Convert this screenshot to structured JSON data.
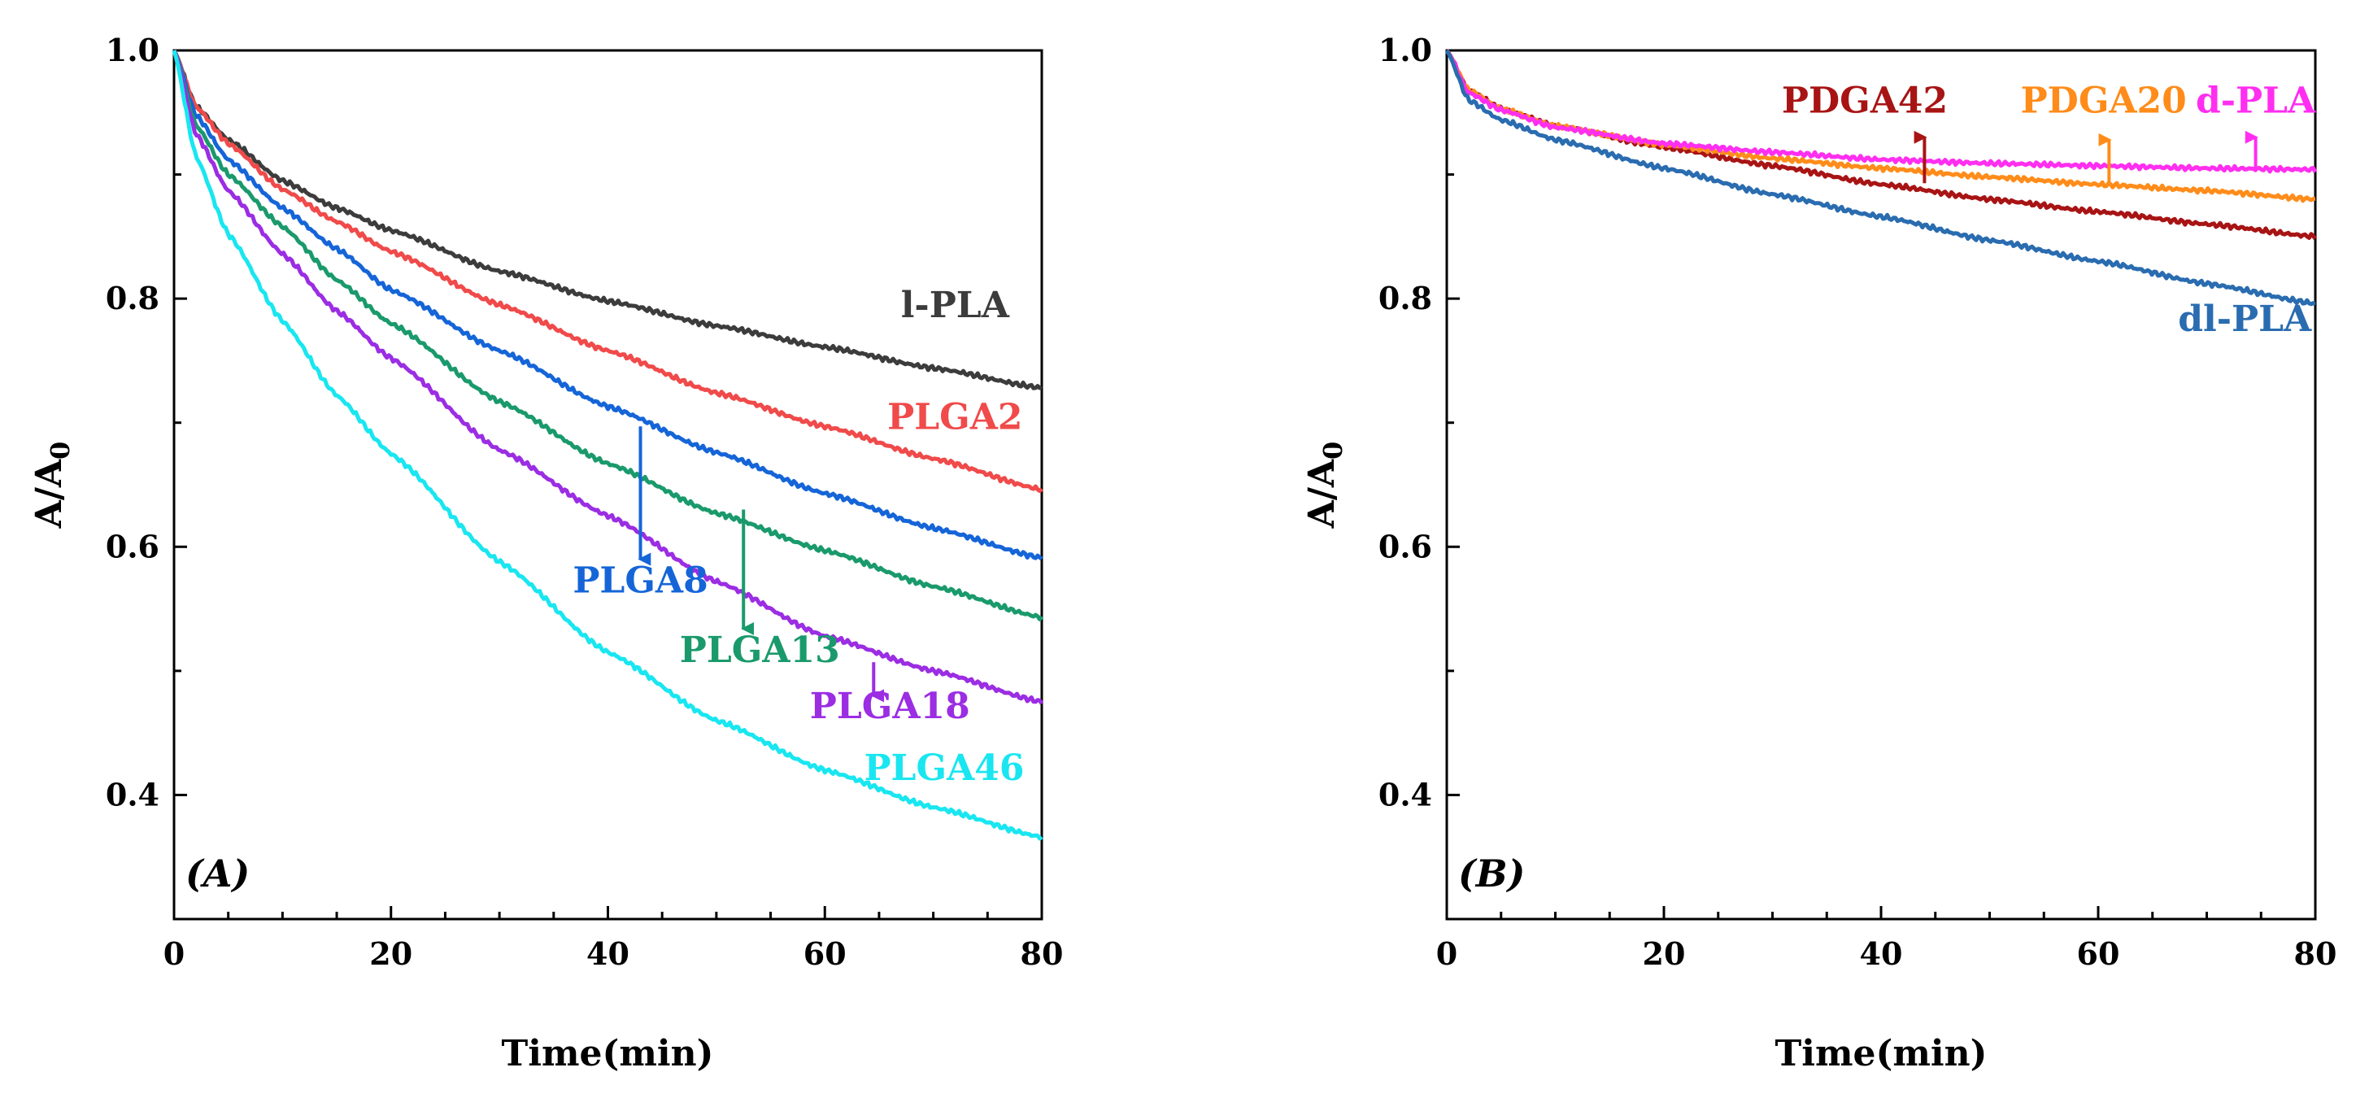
{
  "chart_data": [
    {
      "type": "line",
      "panel_label": "(A)",
      "xlabel": "Time(min)",
      "ylabel": "A/A",
      "ylabel_sub": "0",
      "xlim": [
        0,
        80
      ],
      "ylim": [
        0.3,
        1.0
      ],
      "xticks": [
        0,
        20,
        40,
        60,
        80
      ],
      "yticks": [
        0.4,
        0.6,
        0.8,
        1.0
      ],
      "xtick_labels": [
        "0",
        "20",
        "40",
        "60",
        "80"
      ],
      "ytick_labels": [
        "0.4",
        "0.6",
        "0.8",
        "1.0"
      ],
      "grid": false,
      "series": [
        {
          "name": "l-PLA",
          "color": "#3c3c3c",
          "x": [
            0,
            2,
            5,
            10,
            15,
            20,
            30,
            40,
            50,
            60,
            70,
            80
          ],
          "values": [
            1.0,
            0.955,
            0.928,
            0.895,
            0.873,
            0.855,
            0.822,
            0.798,
            0.778,
            0.761,
            0.744,
            0.728
          ]
        },
        {
          "name": "PLGA2",
          "color": "#f04a4a",
          "x": [
            0,
            2,
            5,
            10,
            15,
            20,
            30,
            40,
            50,
            60,
            70,
            80
          ],
          "values": [
            1.0,
            0.955,
            0.925,
            0.888,
            0.862,
            0.838,
            0.795,
            0.758,
            0.724,
            0.697,
            0.671,
            0.646
          ]
        },
        {
          "name": "PLGA8",
          "color": "#1565d8",
          "x": [
            0,
            2,
            5,
            10,
            15,
            20,
            30,
            40,
            50,
            60,
            70,
            80
          ],
          "values": [
            1.0,
            0.948,
            0.912,
            0.873,
            0.84,
            0.807,
            0.758,
            0.713,
            0.676,
            0.643,
            0.615,
            0.591
          ]
        },
        {
          "name": "PLGA13",
          "color": "#1a9a6c",
          "x": [
            0,
            2,
            5,
            10,
            15,
            20,
            30,
            40,
            50,
            60,
            70,
            80
          ],
          "values": [
            1.0,
            0.94,
            0.9,
            0.858,
            0.815,
            0.78,
            0.717,
            0.667,
            0.627,
            0.597,
            0.568,
            0.543
          ]
        },
        {
          "name": "PLGA18",
          "color": "#9b2de3",
          "x": [
            0,
            2,
            5,
            10,
            15,
            20,
            30,
            40,
            50,
            60,
            70,
            80
          ],
          "values": [
            1.0,
            0.933,
            0.887,
            0.836,
            0.79,
            0.752,
            0.678,
            0.625,
            0.572,
            0.528,
            0.5,
            0.475
          ]
        },
        {
          "name": "PLGA46",
          "color": "#19e6f0",
          "x": [
            0,
            2,
            5,
            10,
            15,
            20,
            30,
            40,
            50,
            60,
            70,
            80
          ],
          "values": [
            1.0,
            0.915,
            0.852,
            0.782,
            0.722,
            0.675,
            0.588,
            0.515,
            0.46,
            0.42,
            0.39,
            0.366
          ]
        }
      ],
      "annotations": [
        {
          "text": "l-PLA",
          "series": "l-PLA",
          "at": [
            72,
            0.785
          ]
        },
        {
          "text": "PLGA2",
          "series": "PLGA2",
          "at": [
            72,
            0.695
          ]
        },
        {
          "text": "PLGA8",
          "series": "PLGA8",
          "at": [
            43,
            0.563
          ],
          "arrow_from": [
            43,
            0.697
          ],
          "arrow_to": [
            43,
            0.59
          ]
        },
        {
          "text": "PLGA13",
          "series": "PLGA13",
          "at": [
            54,
            0.507
          ],
          "arrow_from": [
            52.5,
            0.63
          ],
          "arrow_to": [
            52.5,
            0.534
          ]
        },
        {
          "text": "PLGA18",
          "series": "PLGA18",
          "at": [
            66,
            0.462
          ],
          "arrow_from": [
            64.5,
            0.507
          ],
          "arrow_to": [
            64.5,
            0.48
          ]
        },
        {
          "text": "PLGA46",
          "series": "PLGA46",
          "at": [
            71,
            0.412
          ]
        }
      ]
    },
    {
      "type": "line",
      "panel_label": "(B)",
      "xlabel": "Time(min)",
      "ylabel": "A/A",
      "ylabel_sub": "0",
      "xlim": [
        0,
        80
      ],
      "ylim": [
        0.3,
        1.0
      ],
      "xticks": [
        0,
        20,
        40,
        60,
        80
      ],
      "yticks": [
        0.4,
        0.6,
        0.8,
        1.0
      ],
      "xtick_labels": [
        "0",
        "20",
        "40",
        "60",
        "80"
      ],
      "ytick_labels": [
        "0.4",
        "0.6",
        "0.8",
        "1.0"
      ],
      "grid": false,
      "series": [
        {
          "name": "PDGA42",
          "color": "#a81414",
          "x": [
            0,
            2,
            5,
            10,
            20,
            30,
            40,
            50,
            60,
            70,
            80
          ],
          "values": [
            1.0,
            0.968,
            0.953,
            0.939,
            0.922,
            0.907,
            0.892,
            0.88,
            0.87,
            0.86,
            0.85
          ]
        },
        {
          "name": "PDGA20",
          "color": "#ff8c1a",
          "x": [
            0,
            2,
            5,
            10,
            20,
            30,
            40,
            50,
            60,
            70,
            80
          ],
          "values": [
            1.0,
            0.968,
            0.953,
            0.939,
            0.924,
            0.913,
            0.905,
            0.898,
            0.892,
            0.887,
            0.88
          ]
        },
        {
          "name": "d-PLA",
          "color": "#ff2ef0",
          "x": [
            0,
            2,
            5,
            10,
            20,
            30,
            40,
            50,
            60,
            70,
            80
          ],
          "values": [
            1.0,
            0.966,
            0.952,
            0.938,
            0.925,
            0.918,
            0.912,
            0.909,
            0.907,
            0.905,
            0.904
          ]
        },
        {
          "name": "dl-PLA",
          "color": "#2a6cb0",
          "x": [
            0,
            2,
            5,
            10,
            20,
            30,
            40,
            50,
            60,
            70,
            80
          ],
          "values": [
            1.0,
            0.96,
            0.944,
            0.928,
            0.905,
            0.884,
            0.866,
            0.847,
            0.83,
            0.812,
            0.796
          ]
        }
      ],
      "annotations": [
        {
          "text": "PDGA42",
          "series": "PDGA42",
          "at": [
            38.5,
            0.95
          ],
          "arrow_from": [
            44,
            0.893
          ],
          "arrow_to": [
            44,
            0.93
          ]
        },
        {
          "text": "PDGA20",
          "series": "PDGA20",
          "at": [
            60.5,
            0.95
          ],
          "arrow_from": [
            61,
            0.893
          ],
          "arrow_to": [
            61,
            0.928
          ]
        },
        {
          "text": "d-PLA",
          "series": "d-PLA",
          "at": [
            74.5,
            0.95
          ],
          "arrow_from": [
            74.5,
            0.905
          ],
          "arrow_to": [
            74.5,
            0.93
          ]
        },
        {
          "text": "dl-PLA",
          "series": "dl-PLA",
          "at": [
            73.5,
            0.774
          ]
        }
      ]
    }
  ]
}
